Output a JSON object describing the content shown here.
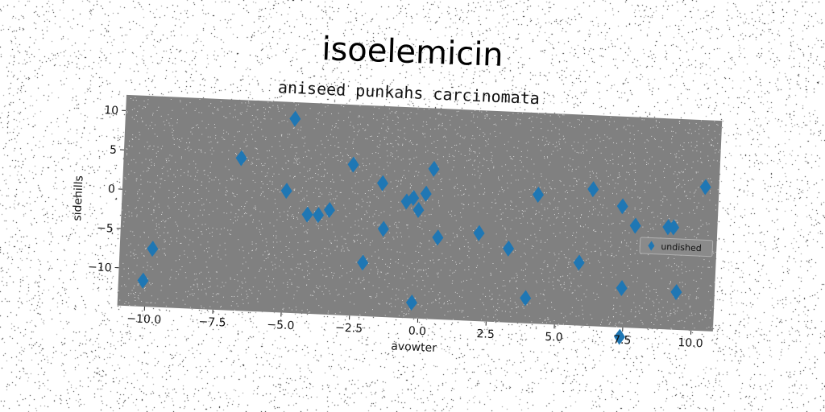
{
  "title": "isoelemicin",
  "chart_data": {
    "type": "scatter",
    "title": "aniseed punkahs carcinomata",
    "xlabel": "avowter",
    "ylabel": "sidehills",
    "xlim": [
      -11,
      10.8
    ],
    "ylim": [
      -14.8,
      12
    ],
    "xticks": [
      -10.0,
      -7.5,
      -5.0,
      -2.5,
      0.0,
      2.5,
      5.0,
      7.5,
      10.0
    ],
    "xtick_labels": [
      "−10.0",
      "−7.5",
      "−5.0",
      "−2.5",
      "0.0",
      "2.5",
      "5.0",
      "7.5",
      "10.0"
    ],
    "yticks": [
      10,
      5,
      0,
      -5,
      -10
    ],
    "ytick_labels": [
      "10",
      "5",
      "0",
      "−5",
      "−10"
    ],
    "grid": false,
    "legend_position": "center-right",
    "plot_bg": "#808080",
    "series": [
      {
        "name": "undished",
        "color": "#1f77b4",
        "marker": "diamond",
        "points": [
          [
            -10.1,
            -11.5
          ],
          [
            -9.8,
            -7.4
          ],
          [
            -6.7,
            4.6
          ],
          [
            -4.8,
            9.9
          ],
          [
            -5.0,
            0.7
          ],
          [
            -4.2,
            -2.2
          ],
          [
            -3.8,
            -2.2
          ],
          [
            -3.4,
            -1.5
          ],
          [
            -2.6,
            4.4
          ],
          [
            -2.1,
            -8.0
          ],
          [
            -1.5,
            2.2
          ],
          [
            -1.4,
            -3.6
          ],
          [
            -0.6,
            0.0
          ],
          [
            -0.35,
            0.5
          ],
          [
            -0.15,
            -1.0
          ],
          [
            0.1,
            1.1
          ],
          [
            0.35,
            4.3
          ],
          [
            -0.25,
            -12.8
          ],
          [
            0.6,
            -4.4
          ],
          [
            2.1,
            -3.6
          ],
          [
            3.2,
            -5.4
          ],
          [
            4.2,
            1.6
          ],
          [
            3.9,
            -11.6
          ],
          [
            5.8,
            -6.8
          ],
          [
            6.2,
            2.6
          ],
          [
            7.3,
            0.6
          ],
          [
            7.8,
            -1.8
          ],
          [
            7.4,
            -9.8
          ],
          [
            9.0,
            -1.8
          ],
          [
            9.2,
            -1.8
          ],
          [
            9.4,
            -10.0
          ],
          [
            10.3,
            3.5
          ],
          [
            7.4,
            -16.0
          ]
        ]
      }
    ]
  }
}
